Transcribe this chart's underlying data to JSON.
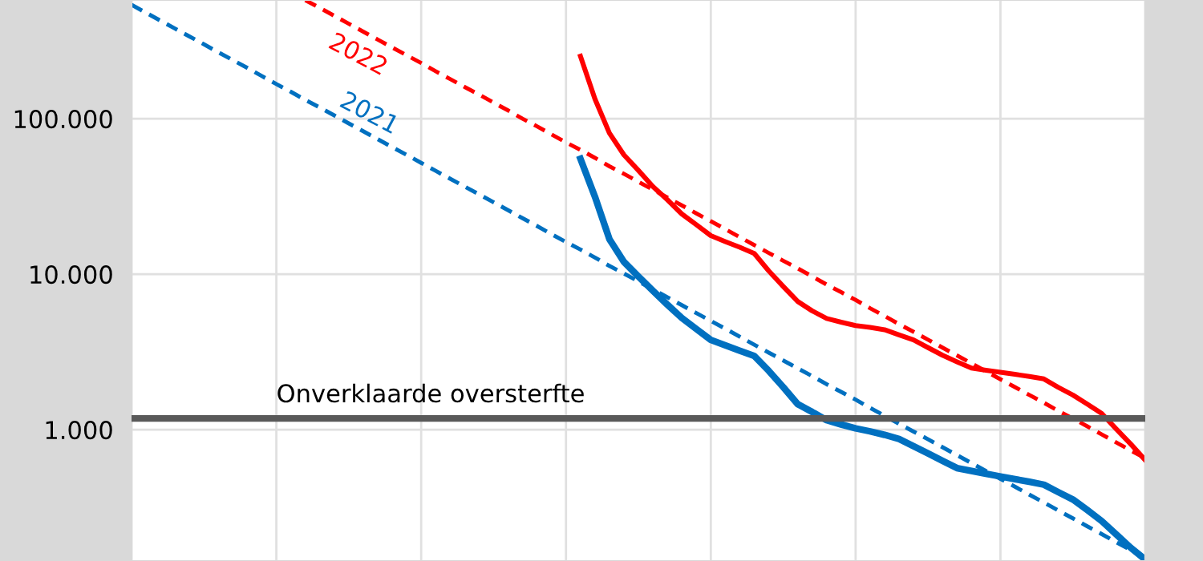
{
  "chart_data": {
    "type": "line",
    "log": "y",
    "grid": true,
    "categories": [
      null,
      null,
      null,
      null,
      null,
      null,
      null,
      null,
      null,
      null,
      null,
      null,
      null,
      null,
      null,
      null,
      null,
      null,
      null,
      null,
      null,
      null,
      null,
      null,
      null,
      null,
      null,
      null,
      null,
      null,
      null,
      null,
      null,
      null,
      null,
      null,
      null,
      null,
      null,
      null,
      null,
      null,
      null,
      null,
      null,
      null,
      null,
      null,
      null,
      null,
      null,
      null,
      null,
      null,
      null,
      null,
      null,
      null,
      null,
      null,
      null,
      null,
      null,
      null,
      null,
      null,
      null,
      null,
      null,
      null,
      null
    ],
    "ylim": [
      143,
      580000
    ],
    "yticks": [
      {
        "value": 1000,
        "label": "1.000"
      },
      {
        "value": 10000,
        "label": "10.000"
      },
      {
        "value": 100000,
        "label": "100.000"
      }
    ],
    "series": [
      {
        "name": "2021",
        "color": "#0070c0",
        "line_style": "dashed",
        "values": [
          540000,
          480000,
          427000,
          380000,
          338000,
          301000,
          267000,
          238000,
          212000,
          188000,
          167000,
          149000,
          132000,
          118000,
          105000,
          93300,
          83000,
          73800,
          65600,
          58500,
          52000,
          46200,
          41100,
          36600,
          32600,
          29000,
          25800,
          22900,
          20400,
          18100,
          16100,
          14400,
          12800,
          11300,
          10100,
          8990,
          8000,
          7110,
          6320,
          5620,
          5010,
          4460,
          3960,
          3520,
          3130,
          2790,
          2480,
          2210,
          1960,
          1750,
          1560,
          1380,
          1230,
          1090,
          973,
          867,
          771,
          686,
          610,
          542,
          483,
          430,
          382,
          340,
          302,
          269,
          239,
          213,
          189,
          168,
          150
        ]
      },
      {
        "name": "2022",
        "color": "#ff0000",
        "line_style": "dashed",
        "values": [
          null,
          null,
          null,
          null,
          null,
          null,
          null,
          null,
          null,
          null,
          null,
          null,
          578000,
          516000,
          459000,
          408000,
          363000,
          323000,
          287000,
          256000,
          228000,
          202000,
          180000,
          160000,
          143000,
          127000,
          113000,
          100000,
          89300,
          79200,
          70400,
          63000,
          56000,
          49400,
          44200,
          39300,
          35000,
          31100,
          27700,
          24600,
          21900,
          19500,
          17300,
          15400,
          13700,
          12200,
          10900,
          9670,
          8580,
          7660,
          6830,
          6040,
          5380,
          4770,
          4260,
          3790,
          3370,
          3000,
          2670,
          2370,
          2110,
          1880,
          1670,
          1490,
          1320,
          1180,
          1050,
          932,
          827,
          735,
          656
        ]
      },
      {
        "color": "#ff0000",
        "line_style": "solid",
        "values": [
          null,
          null,
          null,
          null,
          null,
          null,
          null,
          null,
          null,
          null,
          null,
          null,
          null,
          null,
          null,
          null,
          null,
          null,
          null,
          null,
          null,
          null,
          null,
          null,
          null,
          null,
          null,
          null,
          null,
          null,
          null,
          252000,
          134000,
          80700,
          58500,
          46500,
          36600,
          30100,
          24400,
          20800,
          17700,
          16200,
          14900,
          13600,
          10500,
          8340,
          6680,
          5810,
          5190,
          4910,
          4670,
          4550,
          4390,
          4070,
          3780,
          3370,
          3010,
          2730,
          2490,
          2410,
          2340,
          2270,
          2200,
          2120,
          1870,
          1670,
          1460,
          1270,
          1010,
          808,
          637
        ]
      },
      {
        "color": "#0070c0",
        "line_style": "solid",
        "values": [
          null,
          null,
          null,
          null,
          null,
          null,
          null,
          null,
          null,
          null,
          null,
          null,
          null,
          null,
          null,
          null,
          null,
          null,
          null,
          null,
          null,
          null,
          null,
          null,
          null,
          null,
          null,
          null,
          null,
          null,
          null,
          55200,
          31500,
          16800,
          12000,
          9660,
          7820,
          6370,
          5230,
          4440,
          3780,
          3490,
          3220,
          2980,
          2390,
          1880,
          1460,
          1300,
          1150,
          1080,
          1020,
          975,
          926,
          872,
          783,
          703,
          631,
          566,
          543,
          521,
          500,
          481,
          462,
          443,
          396,
          356,
          304,
          258,
          212,
          174,
          146
        ]
      }
    ],
    "ref_lines": [
      {
        "axis": "y",
        "value": 1180,
        "label": "Onverklaarde oversterfte",
        "color": "#595959"
      }
    ]
  }
}
